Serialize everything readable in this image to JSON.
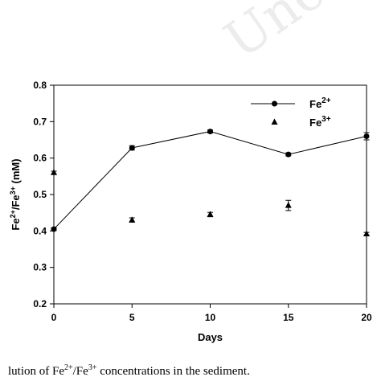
{
  "caption": {
    "part1": "lution of Fe",
    "sup1": "2+",
    "part2": "/Fe",
    "sup2": "3+",
    "part3": " concentrations in the sediment."
  },
  "chart_data": {
    "type": "scatter",
    "title": "",
    "xlabel": "Days",
    "ylabel": {
      "base1": "Fe",
      "sup1": "2+",
      "mid": "/Fe",
      "sup2": "3+",
      "unit": " (mM)"
    },
    "xlim": [
      0,
      20
    ],
    "ylim": [
      0.2,
      0.8
    ],
    "x_ticks": [
      0,
      5,
      10,
      15,
      20
    ],
    "y_ticks": [
      0.2,
      0.3,
      0.4,
      0.5,
      0.6,
      0.7,
      0.8
    ],
    "x_tick_labels": [
      "0",
      "5",
      "10",
      "15",
      "20"
    ],
    "y_tick_labels": [
      "0.2",
      "0.3",
      "0.4",
      "0.5",
      "0.6",
      "0.7",
      "0.8"
    ],
    "grid": false,
    "legend_position": "top-right",
    "series": [
      {
        "name": {
          "base": "Fe",
          "sup": "2+"
        },
        "marker": "circle",
        "line": true,
        "x": [
          0,
          5,
          10,
          15,
          20
        ],
        "y": [
          0.405,
          0.628,
          0.673,
          0.61,
          0.66
        ],
        "error": [
          0.004,
          0.006,
          0.004,
          0.004,
          0.01
        ]
      },
      {
        "name": {
          "base": "Fe",
          "sup": "3+"
        },
        "marker": "triangle",
        "line": false,
        "x": [
          0,
          5,
          10,
          15,
          20
        ],
        "y": [
          0.56,
          0.43,
          0.445,
          0.47,
          0.392
        ],
        "error": [
          0.004,
          0.006,
          0.006,
          0.014,
          0.004
        ]
      }
    ]
  }
}
